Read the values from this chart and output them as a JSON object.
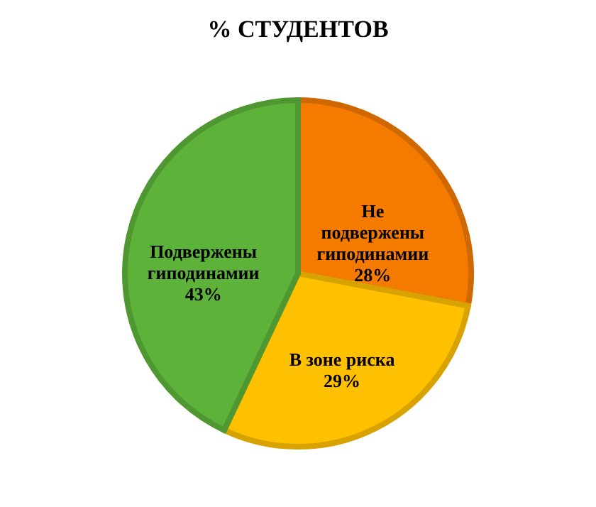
{
  "chart_data": {
    "type": "pie",
    "title": "% СТУДЕНТОВ",
    "categories": [
      "Не подвержены гиподинамии",
      "В зоне риска",
      "Подвержены гиподинамии"
    ],
    "values": [
      28,
      29,
      43
    ],
    "colors": [
      "#f47b00",
      "#ffc000",
      "#5db33a"
    ],
    "value_labels": [
      "28%",
      "29%",
      "43%"
    ],
    "legend": false
  }
}
